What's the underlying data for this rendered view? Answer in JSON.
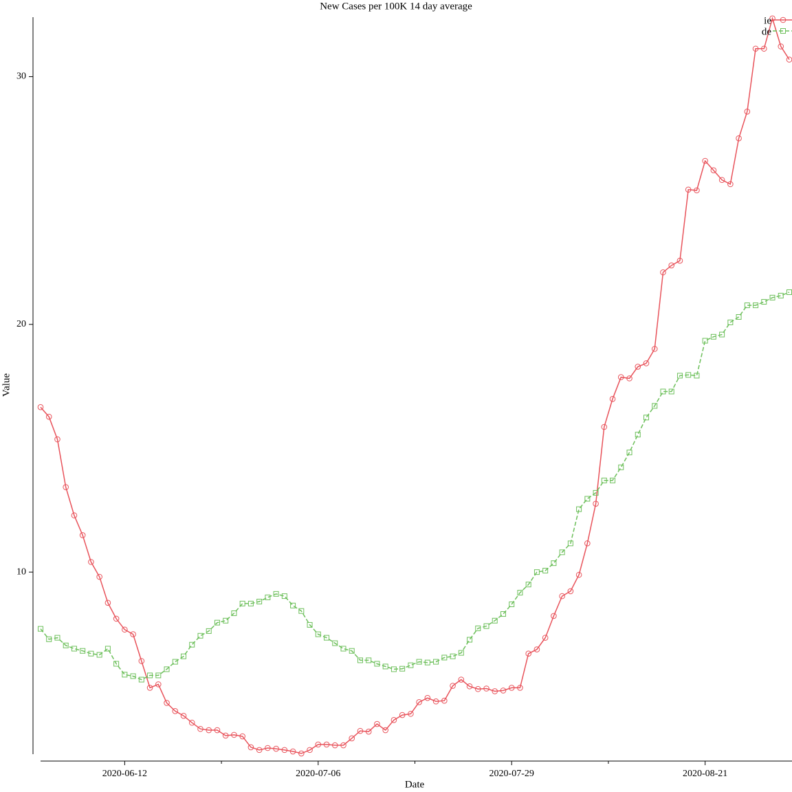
{
  "chart_data": {
    "type": "line",
    "title": "New Cases per 100K 14 day average",
    "xlabel": "Date",
    "ylabel": "Value",
    "categories": [
      "2020-06-02",
      "2020-06-03",
      "2020-06-04",
      "2020-06-05",
      "2020-06-06",
      "2020-06-07",
      "2020-06-08",
      "2020-06-09",
      "2020-06-10",
      "2020-06-11",
      "2020-06-12",
      "2020-06-13",
      "2020-06-14",
      "2020-06-15",
      "2020-06-16",
      "2020-06-17",
      "2020-06-18",
      "2020-06-19",
      "2020-06-21",
      "2020-06-22",
      "2020-06-23",
      "2020-06-24",
      "2020-06-25",
      "2020-06-26",
      "2020-06-27",
      "2020-06-28",
      "2020-06-29",
      "2020-06-30",
      "2020-07-01",
      "2020-07-02",
      "2020-07-03",
      "2020-07-04",
      "2020-07-05",
      "2020-07-06",
      "2020-07-07",
      "2020-07-08",
      "2020-07-09",
      "2020-07-10",
      "2020-07-11",
      "2020-07-12",
      "2020-07-13",
      "2020-07-14",
      "2020-07-15",
      "2020-07-16",
      "2020-07-17",
      "2020-07-18",
      "2020-07-19",
      "2020-07-20",
      "2020-07-21",
      "2020-07-22",
      "2020-07-23",
      "2020-07-24",
      "2020-07-25",
      "2020-07-26",
      "2020-07-27",
      "2020-07-28",
      "2020-07-29",
      "2020-07-30",
      "2020-07-31",
      "2020-08-01",
      "2020-08-02",
      "2020-08-03",
      "2020-08-04",
      "2020-08-05",
      "2020-08-06",
      "2020-08-07",
      "2020-08-08",
      "2020-08-09",
      "2020-08-10",
      "2020-08-11",
      "2020-08-12",
      "2020-08-13",
      "2020-08-14",
      "2020-08-15",
      "2020-08-16",
      "2020-08-17",
      "2020-08-18",
      "2020-08-19",
      "2020-08-20",
      "2020-08-21",
      "2020-08-22",
      "2020-08-23",
      "2020-08-24",
      "2020-08-25",
      "2020-08-26",
      "2020-08-27",
      "2020-08-28",
      "2020-08-29",
      "2020-08-30",
      "2020-08-31"
    ],
    "series": [
      {
        "name": "ie",
        "color": "#e8525a",
        "marker": "circle",
        "dash": false,
        "values": [
          16.66,
          16.27,
          15.36,
          13.43,
          12.29,
          11.49,
          10.41,
          9.81,
          8.76,
          8.12,
          7.68,
          7.49,
          6.41,
          5.33,
          5.47,
          4.72,
          4.39,
          4.2,
          3.92,
          3.67,
          3.62,
          3.62,
          3.4,
          3.43,
          3.37,
          2.93,
          2.82,
          2.9,
          2.87,
          2.82,
          2.76,
          2.68,
          2.82,
          3.04,
          3.04,
          3.01,
          3.01,
          3.29,
          3.59,
          3.56,
          3.87,
          3.62,
          4.03,
          4.23,
          4.28,
          4.75,
          4.92,
          4.78,
          4.81,
          5.41,
          5.66,
          5.39,
          5.28,
          5.3,
          5.19,
          5.22,
          5.33,
          5.33,
          6.71,
          6.88,
          7.35,
          8.23,
          9.03,
          9.23,
          9.89,
          11.16,
          12.76,
          15.86,
          16.99,
          17.87,
          17.82,
          18.29,
          18.43,
          19.01,
          22.1,
          22.38,
          22.57,
          25.44,
          25.41,
          26.6,
          26.22,
          25.83,
          25.66,
          27.51,
          28.59,
          31.13,
          31.13,
          32.35,
          31.22,
          30.69
        ]
      },
      {
        "name": "de",
        "color": "#6cbf5a",
        "marker": "square",
        "dash": true,
        "values": [
          7.71,
          7.29,
          7.35,
          7.04,
          6.91,
          6.82,
          6.71,
          6.66,
          6.91,
          6.3,
          5.86,
          5.8,
          5.66,
          5.83,
          5.83,
          6.08,
          6.38,
          6.6,
          7.07,
          7.43,
          7.62,
          7.96,
          8.04,
          8.34,
          8.73,
          8.73,
          8.81,
          8.98,
          9.12,
          9.03,
          8.65,
          8.43,
          7.87,
          7.49,
          7.35,
          7.13,
          6.91,
          6.82,
          6.44,
          6.44,
          6.3,
          6.19,
          6.08,
          6.1,
          6.24,
          6.38,
          6.35,
          6.38,
          6.55,
          6.6,
          6.74,
          7.27,
          7.73,
          7.82,
          8.04,
          8.31,
          8.7,
          9.17,
          9.5,
          10.0,
          10.06,
          10.36,
          10.8,
          11.16,
          12.54,
          12.96,
          13.2,
          13.7,
          13.7,
          14.23,
          14.83,
          15.55,
          16.24,
          16.71,
          17.29,
          17.29,
          17.93,
          17.96,
          17.93,
          19.34,
          19.5,
          19.59,
          20.08,
          20.3,
          20.77,
          20.77,
          20.91,
          21.08,
          21.16,
          21.3
        ]
      }
    ],
    "ylim": [
      2.65,
      32.4
    ],
    "yticks": [
      10,
      20,
      30
    ],
    "grid": false,
    "legend": "upper right"
  }
}
